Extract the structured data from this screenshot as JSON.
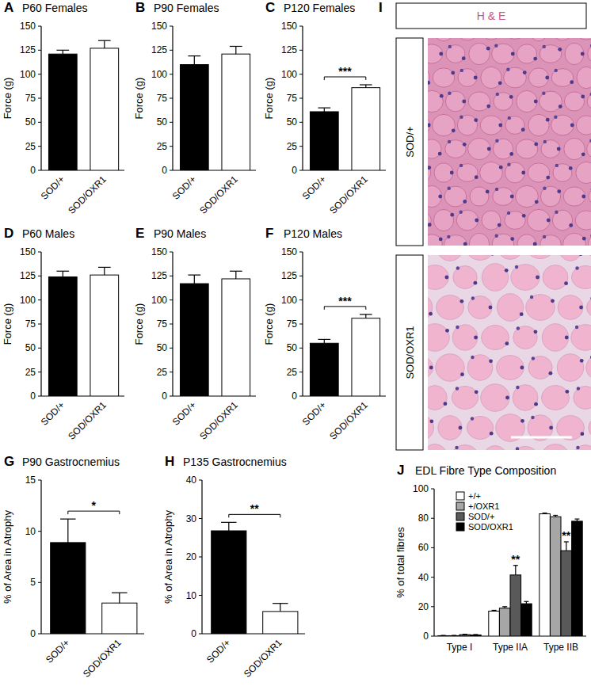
{
  "chart_data": [
    {
      "type": "bar",
      "panel_label": "A",
      "title": "P60 Females",
      "y_label": "Force (g)",
      "categories": [
        "SOD/+",
        "SOD/OXR1"
      ],
      "values": [
        121,
        127
      ],
      "errors": [
        4,
        8
      ],
      "colors": [
        "#000000",
        "#ffffff"
      ],
      "ylim": [
        0,
        150
      ],
      "yticks": [
        0,
        25,
        50,
        75,
        100,
        125,
        150
      ]
    },
    {
      "type": "bar",
      "panel_label": "B",
      "title": "P90 Females",
      "y_label": "Force (g)",
      "categories": [
        "SOD/+",
        "SOD/OXR1"
      ],
      "values": [
        110,
        121
      ],
      "errors": [
        9,
        8
      ],
      "colors": [
        "#000000",
        "#ffffff"
      ],
      "ylim": [
        0,
        150
      ],
      "yticks": [
        0,
        25,
        50,
        75,
        100,
        125,
        150
      ]
    },
    {
      "type": "bar",
      "panel_label": "C",
      "title": "P120 Females",
      "y_label": "Force (g)",
      "categories": [
        "SOD/+",
        "SOD/OXR1"
      ],
      "values": [
        61,
        86
      ],
      "errors": [
        4,
        3
      ],
      "colors": [
        "#000000",
        "#ffffff"
      ],
      "ylim": [
        0,
        150
      ],
      "yticks": [
        0,
        25,
        50,
        75,
        100,
        125,
        150
      ],
      "annotations": [
        {
          "text": "***",
          "from": 0,
          "to": 1
        }
      ]
    },
    {
      "type": "bar",
      "panel_label": "D",
      "title": "P60 Males",
      "y_label": "Force (g)",
      "categories": [
        "SOD/+",
        "SOD/OXR1"
      ],
      "values": [
        124,
        126
      ],
      "errors": [
        6,
        8
      ],
      "colors": [
        "#000000",
        "#ffffff"
      ],
      "ylim": [
        0,
        150
      ],
      "yticks": [
        0,
        25,
        50,
        75,
        100,
        125,
        150
      ]
    },
    {
      "type": "bar",
      "panel_label": "E",
      "title": "P90 Males",
      "y_label": "Force (g)",
      "categories": [
        "SOD/+",
        "SOD/OXR1"
      ],
      "values": [
        117,
        122
      ],
      "errors": [
        9,
        8
      ],
      "colors": [
        "#000000",
        "#ffffff"
      ],
      "ylim": [
        0,
        150
      ],
      "yticks": [
        0,
        25,
        50,
        75,
        100,
        125,
        150
      ]
    },
    {
      "type": "bar",
      "panel_label": "F",
      "title": "P120 Males",
      "y_label": "Force (g)",
      "categories": [
        "SOD/+",
        "SOD/OXR1"
      ],
      "values": [
        55,
        81
      ],
      "errors": [
        4,
        4
      ],
      "colors": [
        "#000000",
        "#ffffff"
      ],
      "ylim": [
        0,
        150
      ],
      "yticks": [
        0,
        25,
        50,
        75,
        100,
        125,
        150
      ],
      "annotations": [
        {
          "text": "***",
          "from": 0,
          "to": 1
        }
      ]
    },
    {
      "type": "bar",
      "panel_label": "G",
      "title": "P90 Gastrocnemius",
      "y_label": "% of Area in Atrophy",
      "categories": [
        "SOD/+",
        "SOD/OXR1"
      ],
      "values": [
        8.9,
        3.0
      ],
      "errors": [
        2.3,
        1.0
      ],
      "colors": [
        "#000000",
        "#ffffff"
      ],
      "ylim": [
        0,
        15
      ],
      "yticks": [
        0,
        5,
        10,
        15
      ],
      "annotations": [
        {
          "text": "*",
          "from": 0,
          "to": 1
        }
      ]
    },
    {
      "type": "bar",
      "panel_label": "H",
      "title": "P135 Gastrocnemius",
      "y_label": "% of Area in Atrophy",
      "categories": [
        "SOD/+",
        "SOD/OXR1"
      ],
      "values": [
        26.8,
        5.8
      ],
      "errors": [
        2.2,
        2.1
      ],
      "colors": [
        "#000000",
        "#ffffff"
      ],
      "ylim": [
        0,
        40
      ],
      "yticks": [
        0,
        10,
        20,
        30,
        40
      ],
      "annotations": [
        {
          "text": "**",
          "from": 0,
          "to": 1
        }
      ]
    },
    {
      "type": "bar",
      "panel_label": "J",
      "title": "EDL Fibre Type Composition",
      "y_label": "% of total fibres",
      "categories": [
        "Type I",
        "Type IIA",
        "Type IIB"
      ],
      "legend": "upper-left",
      "series": [
        {
          "name": "+/+",
          "color": "#ffffff",
          "values": [
            0.3,
            17,
            83
          ],
          "errors": [
            0.2,
            0.5,
            0.5
          ]
        },
        {
          "name": "+/OXR1",
          "color": "#a6a6a6",
          "values": [
            0.3,
            19,
            81
          ],
          "errors": [
            0.2,
            1,
            1
          ]
        },
        {
          "name": "SOD/+",
          "color": "#595959",
          "values": [
            1,
            41.5,
            58
          ],
          "errors": [
            0.3,
            6.5,
            6
          ]
        },
        {
          "name": "SOD/OXR1",
          "color": "#000000",
          "values": [
            0.8,
            22,
            78
          ],
          "errors": [
            0.3,
            1.5,
            1.5
          ]
        }
      ],
      "ylim": [
        0,
        100
      ],
      "yticks": [
        0,
        20,
        40,
        60,
        80,
        100
      ],
      "annotations": [
        {
          "text": "**",
          "category": 1,
          "series": 2
        },
        {
          "text": "**",
          "category": 2,
          "series": 2
        }
      ]
    }
  ],
  "image_panel": {
    "panel_label": "I",
    "header": "H & E",
    "rows": [
      "SOD/+",
      "SOD/OXR1"
    ]
  }
}
